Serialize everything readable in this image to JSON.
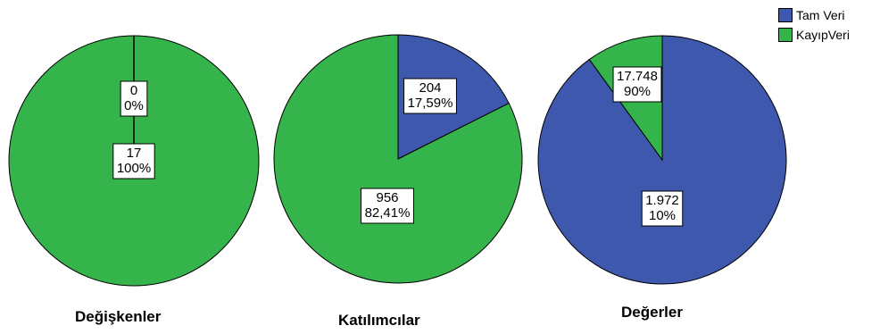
{
  "legend": {
    "items": [
      {
        "label": "Tam Veri",
        "color": "#3e58ad"
      },
      {
        "label": "KayıpVeri",
        "color": "#34b44a"
      }
    ]
  },
  "chart_data": [
    {
      "type": "pie",
      "title": "Değişkenler",
      "categories": [
        "Tam Veri",
        "KayıpVeri"
      ],
      "values": [
        0,
        17
      ],
      "labels": [
        {
          "count": "0",
          "percent": "0%"
        },
        {
          "count": "17",
          "percent": "100%"
        }
      ]
    },
    {
      "type": "pie",
      "title": "Katılımcılar",
      "categories": [
        "Tam Veri",
        "KayıpVeri"
      ],
      "values": [
        204,
        956
      ],
      "labels": [
        {
          "count": "204",
          "percent": "17,59%"
        },
        {
          "count": "956",
          "percent": "82,41%"
        }
      ]
    },
    {
      "type": "pie",
      "title": "Değerler",
      "categories": [
        "Tam Veri",
        "KayıpVeri"
      ],
      "values": [
        17748,
        1972
      ],
      "labels": [
        {
          "count": "17.748",
          "percent": "90%"
        },
        {
          "count": "1.972",
          "percent": "10%"
        }
      ]
    }
  ]
}
